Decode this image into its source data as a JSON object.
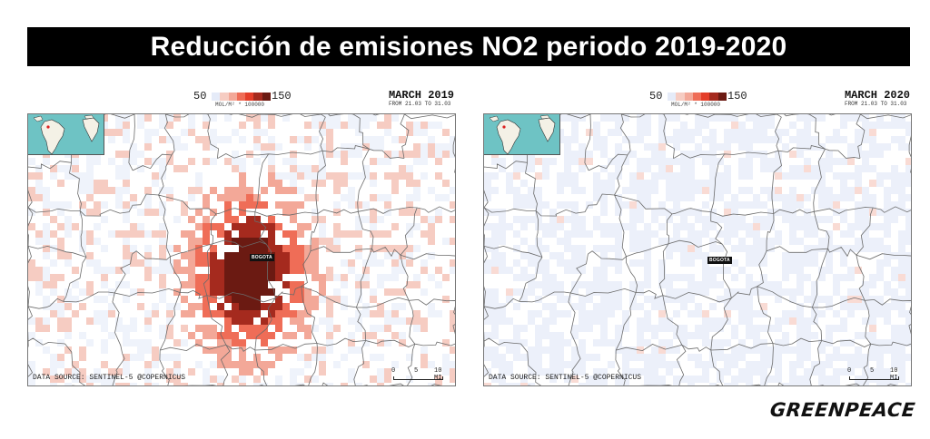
{
  "title": "Reducción de emisiones NO2 periodo 2019-2020",
  "legend": {
    "min": "50",
    "max": "150",
    "unit": "MOL/M² * 100000",
    "colors": [
      "#e5ebf8",
      "#f6ccc2",
      "#f3a898",
      "#ef6d57",
      "#e43e2a",
      "#a52a1e",
      "#6b1a12"
    ]
  },
  "panels": [
    {
      "period": "MARCH 2019",
      "range": "FROM 21.03 TO 31.03",
      "city": "BOGOTA",
      "source": "DATA SOURCE: SENTINEL-5 @COPERNICUS",
      "scale": [
        "0",
        "5",
        "10 MI"
      ],
      "style": "high"
    },
    {
      "period": "MARCH 2020",
      "range": "FROM 21.03 TO 31.03",
      "city": "BOGOTA",
      "source": "DATA SOURCE: SENTINEL-5 @COPERNICUS",
      "scale": [
        "0",
        "5",
        "10 MI"
      ],
      "style": "low"
    }
  ],
  "brand": "GREENPEACE",
  "colors": {
    "title_bg": "#000000",
    "title_fg": "#ffffff",
    "inset_water": "#6ec3c4",
    "inset_land": "#f4f1e6"
  }
}
